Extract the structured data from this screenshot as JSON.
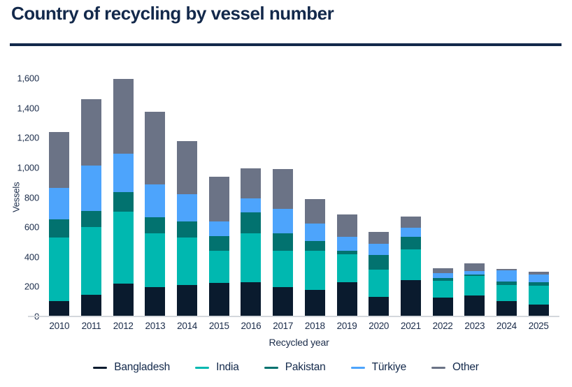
{
  "header": {
    "title": "Country of recycling by vessel number"
  },
  "chart_data": {
    "type": "bar",
    "stacked": true,
    "title": "Country of recycling by vessel number",
    "xlabel": "Recycled year",
    "ylabel": "Vessels",
    "ylim": [
      0,
      1600
    ],
    "grid": false,
    "legend_position": "bottom",
    "y_ticks": [
      {
        "label": "0",
        "value": 0
      },
      {
        "label": "200",
        "value": 200
      },
      {
        "label": "400",
        "value": 400
      },
      {
        "label": "600",
        "value": 600
      },
      {
        "label": "800",
        "value": 800
      },
      {
        "label": "1,000",
        "value": 1000
      },
      {
        "label": "1,200",
        "value": 1200
      },
      {
        "label": "1,400",
        "value": 1400
      },
      {
        "label": "1,600",
        "value": 1600
      }
    ],
    "categories": [
      "2010",
      "2011",
      "2012",
      "2013",
      "2014",
      "2015",
      "2016",
      "2017",
      "2018",
      "2019",
      "2020",
      "2021",
      "2022",
      "2023",
      "2024",
      "2025"
    ],
    "series": [
      {
        "name": "Bangladesh",
        "color": "#0a1b2e",
        "values": [
          105,
          145,
          220,
          195,
          210,
          225,
          230,
          195,
          180,
          230,
          130,
          245,
          125,
          140,
          105,
          80
        ]
      },
      {
        "name": "India",
        "color": "#00b8b0",
        "values": [
          425,
          455,
          485,
          365,
          320,
          215,
          330,
          245,
          260,
          190,
          185,
          205,
          115,
          130,
          105,
          125
        ]
      },
      {
        "name": "Pakistan",
        "color": "#02726f",
        "values": [
          120,
          110,
          130,
          105,
          110,
          100,
          140,
          120,
          65,
          20,
          100,
          85,
          20,
          10,
          25,
          25
        ]
      },
      {
        "name": "Türkiye",
        "color": "#4da4fc",
        "values": [
          215,
          305,
          260,
          220,
          180,
          100,
          95,
          165,
          120,
          95,
          75,
          60,
          30,
          25,
          75,
          50
        ]
      },
      {
        "name": "Other",
        "color": "#6b7386",
        "values": [
          375,
          445,
          500,
          490,
          360,
          300,
          200,
          265,
          165,
          150,
          80,
          75,
          35,
          50,
          10,
          20
        ]
      }
    ],
    "totals": [
      1240,
      1460,
      1595,
      1375,
      1180,
      940,
      995,
      990,
      790,
      685,
      570,
      670,
      325,
      355,
      320,
      300
    ]
  },
  "colors": {
    "background": "#ffffff",
    "title_text": "#13294b",
    "axis_text": "#1b2c4a",
    "divider": "#13294b",
    "axis_line": "#d4d7dc"
  }
}
